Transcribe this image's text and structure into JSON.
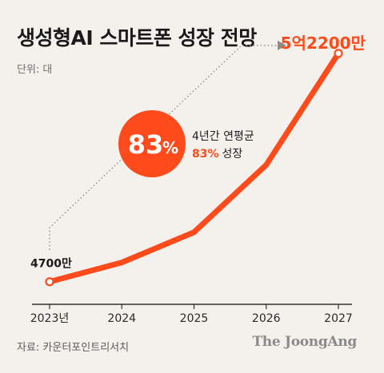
{
  "title": "생성형AI 스마트폰 성장 전망",
  "unit": "단위: 대",
  "source": "자료: 카운터포인트리서치",
  "logo": "The JoongAng",
  "accent_color": "#ff4a1c",
  "callout": {
    "value": "83",
    "percent_sign": "%",
    "line1": "4년간 연평균",
    "line2_value": "83%",
    "line2_text": "성장"
  },
  "chart_data": {
    "type": "line",
    "title": "생성형AI 스마트폰 성장 전망",
    "xlabel": "",
    "ylabel": "",
    "categories": [
      "2023년",
      "2024",
      "2025",
      "2026",
      "2027"
    ],
    "values": [
      47000000,
      87000000,
      150000000,
      290000000,
      522000000
    ],
    "ylim": [
      0,
      560000000
    ],
    "grid": false,
    "data_labels": [
      {
        "index": 0,
        "text": "4700만"
      },
      {
        "index": 4,
        "text": "5억2200만"
      }
    ]
  }
}
